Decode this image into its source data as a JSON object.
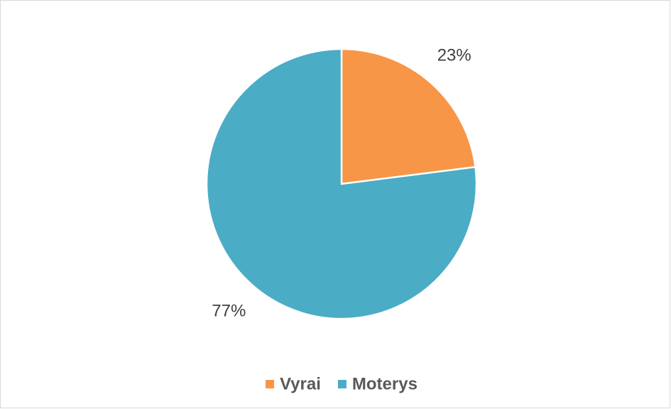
{
  "chart_data": {
    "type": "pie",
    "categories": [
      "Vyrai",
      "Moterys"
    ],
    "values": [
      23,
      77
    ],
    "value_labels": [
      "23%",
      "77%"
    ],
    "colors": [
      "#f79646",
      "#4bacc6"
    ],
    "legend": "bottom"
  }
}
